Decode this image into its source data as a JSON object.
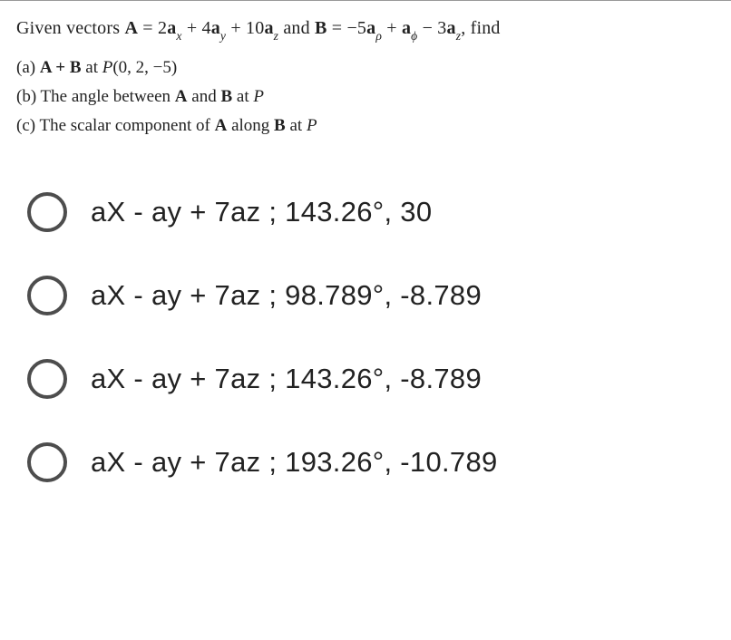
{
  "background_color": "#ffffff",
  "text_color": "#222222",
  "question": {
    "intro_prefix": "Given vectors ",
    "A_label": "A",
    "eq1": " = 2",
    "a_term": "a",
    "sub_x": "x",
    "plus1": " + 4",
    "sub_y": "y",
    "plus2": " + 10",
    "sub_z": "z",
    "and_text": " and ",
    "B_label": "B",
    "eq2": " = −5",
    "sub_rho": "ρ",
    "plus3": " + ",
    "sub_phi": "ϕ",
    "minus1": " − 3",
    "find_text": ", find",
    "part_a_label": "(a)  ",
    "part_a_text_1": "A + B",
    "part_a_text_2": " at ",
    "part_a_point": "P",
    "part_a_coords": "(0, 2, −5)",
    "part_b_label": "(b)  The angle between ",
    "part_b_A": "A",
    "part_b_and": " and ",
    "part_b_B": "B",
    "part_b_at": " at ",
    "part_b_P": "P",
    "part_c_label": "(c)  The scalar component of ",
    "part_c_A": "A",
    "part_c_along": " along ",
    "part_c_B": "B",
    "part_c_at": " at ",
    "part_c_P": "P"
  },
  "options": [
    {
      "text": "aX - ay + 7az ; 143.26°, 30"
    },
    {
      "text": "aX - ay + 7az ; 98.789°, -8.789"
    },
    {
      "text": "aX - ay + 7az ; 143.26°, -8.789"
    },
    {
      "text": "aX - ay + 7az ; 193.26°, -10.789"
    }
  ],
  "style": {
    "question_fontsize": 20,
    "option_fontsize": 31,
    "radio_border_color": "#4d4d4d",
    "radio_size": 44,
    "divider_color": "#999999"
  }
}
